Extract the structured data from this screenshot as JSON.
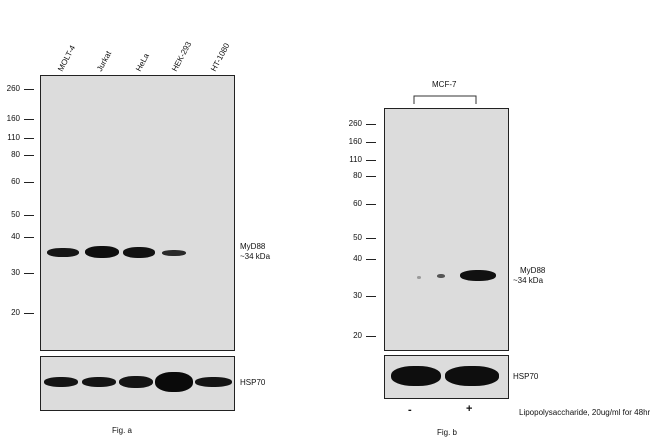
{
  "figure_a": {
    "lanes": [
      "MOLT-4",
      "Jurkat",
      "HeLa",
      "HEK-293",
      "HT-1080"
    ],
    "markers": [
      "260",
      "160",
      "110",
      "80",
      "60",
      "50",
      "40",
      "30",
      "20"
    ],
    "band_label": "MyD88",
    "band_size": "~34 kDa",
    "loading_control": "HSP70",
    "caption": "Fig. a"
  },
  "figure_b": {
    "group_label": "MCF-7",
    "markers": [
      "260",
      "160",
      "110",
      "80",
      "60",
      "50",
      "40",
      "30",
      "20"
    ],
    "band_label": "MyD88",
    "band_size": "~34 kDa",
    "loading_control": "HSP70",
    "treatment_minus": "-",
    "treatment_plus": "+",
    "treatment_label": "Lipopolysaccharide, 20ug/ml for 48hr",
    "caption": "Fig. b"
  }
}
